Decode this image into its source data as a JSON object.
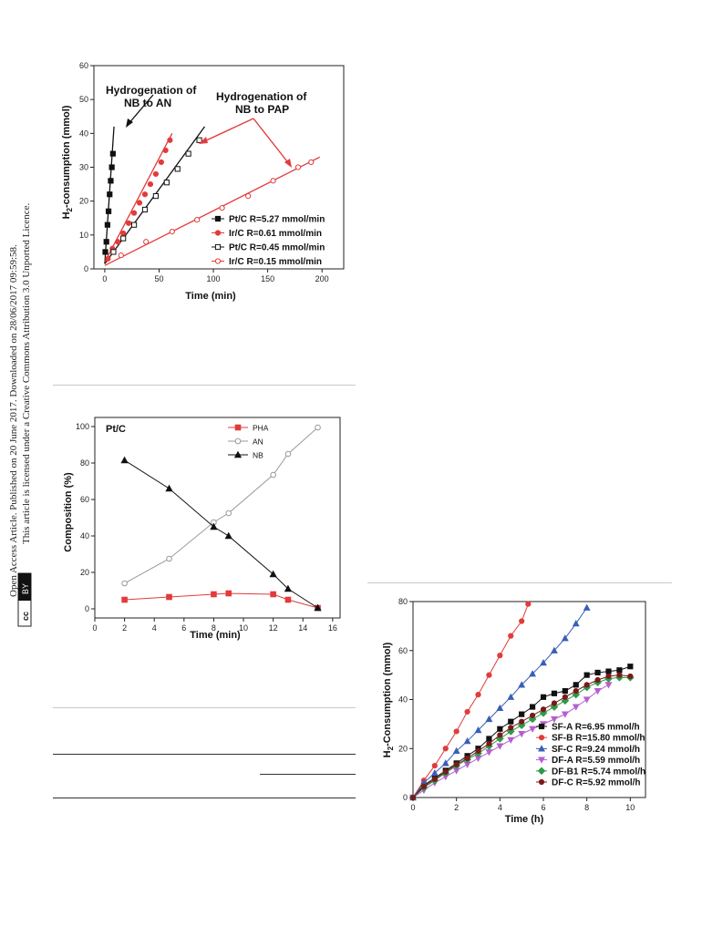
{
  "sidebar": {
    "line1": "Open Access Article. Published on 20 June 2017. Downloaded on 28/06/2017 09:59:58.",
    "line2": "This article is licensed under a Creative Commons Attribution 3.0 Unported Licence.",
    "badge_cc": "cc",
    "badge_by": "BY"
  },
  "chart_data": [
    {
      "type": "scatter",
      "title": "",
      "xlabel": "Time (min)",
      "ylabel_prefix": "H",
      "ylabel_sub": "2",
      "ylabel_suffix": "-consumption (mmol)",
      "xlim": [
        -10,
        220
      ],
      "ylim": [
        0,
        60
      ],
      "xticks": [
        0,
        50,
        100,
        150,
        200
      ],
      "yticks": [
        0,
        10,
        20,
        30,
        40,
        50,
        60
      ],
      "legend_position": "bottom-right",
      "annotations": [
        {
          "lines": [
            "Hydrogenation of",
            "NB to AN"
          ]
        },
        {
          "lines": [
            "Hydrogenation of",
            "NB to PAP"
          ]
        }
      ],
      "series": [
        {
          "name": "Pt/C  R=5.27 mmol/min",
          "color": "#111111",
          "marker": "filled-square",
          "fit": [
            [
              0,
              1.5
            ],
            [
              8.5,
              42
            ]
          ],
          "x": [
            0.5,
            1.5,
            2.5,
            3.5,
            4.5,
            5.5,
            6.5,
            7.5
          ],
          "y": [
            5,
            8,
            13,
            17,
            22,
            26,
            30,
            34
          ]
        },
        {
          "name": "Ir/C  R=0.61 mmol/min",
          "color": "#e23b3b",
          "marker": "filled-circle",
          "fit": [
            [
              0,
              2
            ],
            [
              62,
              40
            ]
          ],
          "x": [
            3,
            7,
            12,
            17,
            22,
            27,
            32,
            37,
            42,
            47,
            52,
            56,
            60
          ],
          "y": [
            3,
            6,
            8,
            10.5,
            13.5,
            16.5,
            19.5,
            22,
            25,
            28,
            31.5,
            35,
            38
          ]
        },
        {
          "name": "Pt/C  R=0.45 mmol/min",
          "color": "#111111",
          "marker": "open-square",
          "fit": [
            [
              0,
              1.5
            ],
            [
              92,
              42
            ]
          ],
          "x": [
            8,
            17,
            27,
            37,
            47,
            57,
            67,
            77,
            87
          ],
          "y": [
            5,
            9,
            13,
            17.5,
            21.5,
            25.5,
            29.5,
            34,
            38
          ]
        },
        {
          "name": "Ir/C  R=0.15 mmol/min",
          "color": "#e23b3b",
          "marker": "open-circle",
          "fit": [
            [
              0,
              1
            ],
            [
              198,
              33
            ]
          ],
          "x": [
            15,
            38,
            62,
            85,
            108,
            132,
            155,
            178,
            190
          ],
          "y": [
            4,
            8,
            11,
            14.5,
            18,
            21.5,
            26,
            30,
            31.5
          ]
        }
      ]
    },
    {
      "type": "line",
      "title": "Pt/C",
      "xlabel": "Time (min)",
      "ylabel": "Composition (%)",
      "xlim": [
        0,
        16.5
      ],
      "ylim": [
        -5,
        105
      ],
      "xticks": [
        0,
        2,
        4,
        6,
        8,
        10,
        12,
        14,
        16
      ],
      "yticks": [
        0,
        20,
        40,
        60,
        80,
        100
      ],
      "legend_position": "top-right",
      "series": [
        {
          "name": "PHA",
          "color": "#e23b3b",
          "marker": "filled-square",
          "x": [
            2,
            5,
            8,
            9,
            12,
            13,
            15
          ],
          "y": [
            5,
            6.5,
            8,
            8.5,
            8,
            5,
            0.5
          ]
        },
        {
          "name": "AN",
          "color": "#9a9a9a",
          "marker": "open-circle",
          "x": [
            2,
            5,
            8,
            9,
            12,
            13,
            15
          ],
          "y": [
            14,
            27.5,
            47.5,
            52.5,
            73.5,
            85,
            99.5
          ]
        },
        {
          "name": "NB",
          "color": "#111111",
          "marker": "filled-triangle",
          "x": [
            2,
            5,
            8,
            9,
            12,
            13,
            15
          ],
          "y": [
            81.5,
            66,
            45,
            40,
            19,
            11,
            0.5
          ]
        }
      ]
    },
    {
      "type": "line",
      "title": "",
      "xlabel": "Time (h)",
      "ylabel_prefix": "H",
      "ylabel_sub": "2",
      "ylabel_suffix": "-Consumption (mmol)",
      "xlim": [
        0,
        10.7
      ],
      "ylim": [
        0,
        80
      ],
      "xticks": [
        0,
        2,
        4,
        6,
        8,
        10
      ],
      "yticks": [
        0,
        20,
        40,
        60,
        80
      ],
      "legend_position": "bottom-right",
      "series": [
        {
          "name": "SF-A R=6.95 mmol/h",
          "color": "#111111",
          "marker": "filled-square",
          "x": [
            0,
            0.5,
            1,
            1.5,
            2,
            2.5,
            3,
            3.5,
            4,
            4.5,
            5,
            5.5,
            6,
            6.5,
            7,
            7.5,
            8,
            8.5,
            9,
            9.5,
            10
          ],
          "y": [
            0,
            5,
            8,
            11,
            14,
            17,
            20,
            24,
            28,
            31,
            34,
            37,
            41,
            42.5,
            43.5,
            46,
            50,
            51,
            51.5,
            52,
            53.5
          ]
        },
        {
          "name": "SF-B R=15.80 mmol/h",
          "color": "#e23b3b",
          "marker": "filled-circle",
          "x": [
            0,
            0.5,
            1,
            1.5,
            2,
            2.5,
            3,
            3.5,
            4,
            4.5,
            5,
            5.3
          ],
          "y": [
            0,
            7,
            13,
            20,
            27,
            35,
            42,
            50,
            58,
            66,
            72,
            79
          ]
        },
        {
          "name": "SF-C R=9.24 mmol/h",
          "color": "#3a5fb8",
          "marker": "filled-triangle",
          "x": [
            0,
            0.5,
            1,
            1.5,
            2,
            2.5,
            3,
            3.5,
            4,
            4.5,
            5,
            5.5,
            6,
            6.5,
            7,
            7.5,
            8
          ],
          "y": [
            0,
            6,
            10,
            14,
            19,
            23,
            27.5,
            32,
            36.5,
            41,
            46,
            50.5,
            55,
            60,
            65,
            71,
            77.5
          ]
        },
        {
          "name": "DF-A R=5.59 mmol/h",
          "color": "#b65fd0",
          "marker": "filled-triangle-down",
          "x": [
            0,
            0.5,
            1,
            1.5,
            2,
            2.5,
            3,
            3.5,
            4,
            4.5,
            5,
            5.5,
            6,
            6.5,
            7,
            7.5,
            8,
            8.5,
            9
          ],
          "y": [
            0,
            3,
            6,
            8.5,
            11,
            13.5,
            16,
            18.5,
            21,
            23.5,
            26,
            28,
            30,
            32,
            34,
            37,
            40,
            43.5,
            46
          ]
        },
        {
          "name": "DF-B1 R=5.74 mmol/h",
          "color": "#2e9a48",
          "marker": "filled-diamond",
          "x": [
            0,
            0.5,
            1,
            1.5,
            2,
            2.5,
            3,
            3.5,
            4,
            4.5,
            5,
            5.5,
            6,
            6.5,
            7,
            7.5,
            8,
            8.5,
            9,
            9.5,
            10
          ],
          "y": [
            0,
            4,
            7,
            10,
            13,
            15.5,
            18,
            21,
            24,
            27,
            29.5,
            32,
            34.5,
            37,
            39.5,
            42,
            45,
            47,
            48.5,
            49,
            49
          ]
        },
        {
          "name": "DF-C R=5.92 mmol/h",
          "color": "#7a1a1a",
          "marker": "filled-circle",
          "x": [
            0,
            0.5,
            1,
            1.5,
            2,
            2.5,
            3,
            3.5,
            4,
            4.5,
            5,
            5.5,
            6,
            6.5,
            7,
            7.5,
            8,
            8.5,
            9,
            9.5,
            10
          ],
          "y": [
            0,
            4.5,
            7.5,
            10.5,
            13.5,
            16,
            19,
            22,
            25.5,
            28.5,
            31,
            33.5,
            36,
            38.5,
            41,
            43.5,
            46,
            48,
            49.5,
            50,
            49.5
          ]
        }
      ]
    }
  ]
}
